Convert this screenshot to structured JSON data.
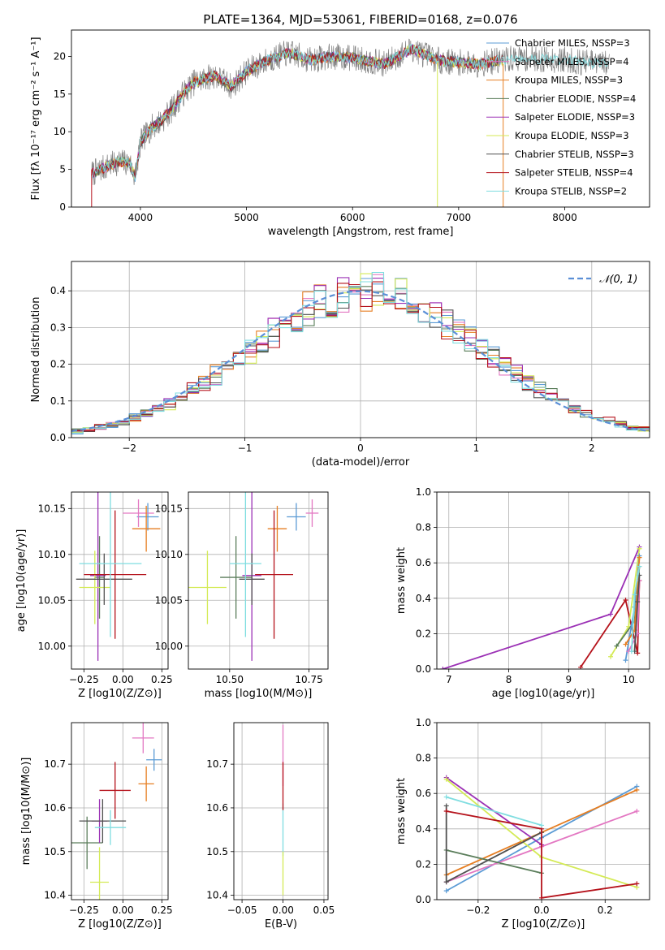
{
  "title": "PLATE=1364, MJD=53061, FIBERID=0168, z=0.076",
  "colors": {
    "chabrier_miles": "#5b9bd5",
    "salpeter_miles": "#e377c2",
    "kroupa_miles": "#e67e22",
    "chabrier_elodie": "#5a7d5a",
    "salpeter_elodie": "#9b30b5",
    "kroupa_elodie": "#d4ea55",
    "chabrier_stelib": "#505050",
    "salpeter_stelib": "#b5121b",
    "kroupa_stelib": "#7fdde0",
    "data_line": "#808080",
    "gaussian": "#5b8fd6"
  },
  "chart_data": [
    {
      "id": "spectrum",
      "type": "line",
      "title": "PLATE=1364, MJD=53061, FIBERID=0168, z=0.076",
      "xlabel": "wavelength [Angstrom, rest frame]",
      "ylabel": "Flux [fλ 10⁻¹⁷ erg cm⁻² s⁻¹ A⁻¹]",
      "xlim": [
        3350,
        8800
      ],
      "ylim": [
        0,
        23.5
      ],
      "xticks": [
        4000,
        5000,
        6000,
        7000,
        8000
      ],
      "yticks": [
        0,
        5,
        10,
        15,
        20
      ],
      "legend_position": "right",
      "legend": [
        "Chabrier MILES, NSSP=3",
        "Salpeter MILES, NSSP=4",
        "Kroupa MILES, NSSP=3",
        "Chabrier ELODIE, NSSP=4",
        "Salpeter ELODIE, NSSP=3",
        "Kroupa ELODIE, NSSP=3",
        "Chabrier STELIB, NSSP=3",
        "Salpeter STELIB, NSSP=4",
        "Kroupa STELIB, NSSP=2"
      ],
      "continuum_knots": [
        [
          3550,
          4.5
        ],
        [
          3700,
          5.5
        ],
        [
          3800,
          6.0
        ],
        [
          3900,
          5.8
        ],
        [
          3950,
          4.0
        ],
        [
          4000,
          8.5
        ],
        [
          4100,
          10.5
        ],
        [
          4200,
          11.5
        ],
        [
          4300,
          13.0
        ],
        [
          4400,
          15.0
        ],
        [
          4500,
          16.5
        ],
        [
          4700,
          17.5
        ],
        [
          4861,
          16.0
        ],
        [
          5000,
          18.0
        ],
        [
          5200,
          19.5
        ],
        [
          5400,
          20.5
        ],
        [
          5600,
          19.5
        ],
        [
          5800,
          20.0
        ],
        [
          6000,
          19.8
        ],
        [
          6300,
          19.0
        ],
        [
          6563,
          21.0
        ],
        [
          6800,
          19.5
        ],
        [
          7000,
          19.2
        ],
        [
          7200,
          19.0
        ],
        [
          7400,
          19.5
        ],
        [
          7600,
          19.8
        ],
        [
          7800,
          19.6
        ],
        [
          8000,
          19.5
        ],
        [
          8200,
          19.2
        ],
        [
          8400,
          19.0
        ]
      ]
    },
    {
      "id": "residuals",
      "type": "histogram",
      "xlabel": "(data-model)/error",
      "ylabel": "Normed distribution",
      "xlim": [
        -2.5,
        2.5
      ],
      "ylim": [
        0,
        0.48
      ],
      "xticks": [
        -2,
        -1,
        0,
        1,
        2
      ],
      "yticks": [
        0.0,
        0.1,
        0.2,
        0.3,
        0.4
      ],
      "bin_width": 0.1,
      "grid": true,
      "legend": [
        "𝒩(0, 1)"
      ],
      "legend_position": "top-right",
      "gaussian": {
        "mean": 0,
        "sigma": 1
      }
    },
    {
      "id": "age_vs_Z",
      "type": "scatter",
      "xlabel": "Z [log10(Z/Z⊙)]",
      "ylabel": "age [log10(age/yr)]",
      "xlim": [
        -0.33,
        0.29
      ],
      "ylim": [
        9.975,
        10.168
      ],
      "xticks": [
        -0.25,
        0.0,
        0.25
      ],
      "yticks": [
        10.0,
        10.05,
        10.1,
        10.15
      ],
      "grid": true,
      "points": [
        {
          "m": "chabrier_miles",
          "x": 0.16,
          "xe": 0.07,
          "y": 10.141,
          "ye": 0.015
        },
        {
          "m": "salpeter_miles",
          "x": 0.1,
          "xe": 0.1,
          "y": 10.145,
          "ye": 0.015
        },
        {
          "m": "kroupa_miles",
          "x": 0.15,
          "xe": 0.09,
          "y": 10.128,
          "ye": 0.025
        },
        {
          "m": "chabrier_elodie",
          "x": -0.15,
          "xe": 0.03,
          "y": 10.075,
          "ye": 0.045
        },
        {
          "m": "salpeter_elodie",
          "x": -0.16,
          "xe": 0.05,
          "y": 10.077,
          "ye": 0.093
        },
        {
          "m": "kroupa_elodie",
          "x": -0.18,
          "xe": 0.1,
          "y": 10.064,
          "ye": 0.04
        },
        {
          "m": "chabrier_stelib",
          "x": -0.12,
          "xe": 0.18,
          "y": 10.073,
          "ye": 0.028
        },
        {
          "m": "salpeter_stelib",
          "x": -0.05,
          "xe": 0.2,
          "y": 10.078,
          "ye": 0.07
        },
        {
          "m": "kroupa_stelib",
          "x": -0.08,
          "xe": 0.2,
          "y": 10.09,
          "ye": 0.08
        }
      ]
    },
    {
      "id": "age_vs_mass",
      "type": "scatter",
      "xlabel": "mass [log10(M/M⊙)]",
      "xlim": [
        10.37,
        10.81
      ],
      "ylim": [
        9.975,
        10.168
      ],
      "xticks": [
        10.5,
        10.75
      ],
      "yticks": [
        10.0,
        10.05,
        10.1,
        10.15
      ],
      "grid": true,
      "points": [
        {
          "m": "chabrier_miles",
          "x": 10.71,
          "xe": 0.03,
          "y": 10.141,
          "ye": 0.015
        },
        {
          "m": "salpeter_miles",
          "x": 10.76,
          "xe": 0.02,
          "y": 10.145,
          "ye": 0.015
        },
        {
          "m": "kroupa_miles",
          "x": 10.65,
          "xe": 0.03,
          "y": 10.128,
          "ye": 0.025
        },
        {
          "m": "chabrier_elodie",
          "x": 10.52,
          "xe": 0.05,
          "y": 10.075,
          "ye": 0.045
        },
        {
          "m": "salpeter_elodie",
          "x": 10.57,
          "xe": 0.03,
          "y": 10.077,
          "ye": 0.093
        },
        {
          "m": "kroupa_elodie",
          "x": 10.43,
          "xe": 0.06,
          "y": 10.064,
          "ye": 0.04
        },
        {
          "m": "chabrier_stelib",
          "x": 10.57,
          "xe": 0.04,
          "y": 10.073,
          "ye": 0.028
        },
        {
          "m": "salpeter_stelib",
          "x": 10.64,
          "xe": 0.06,
          "y": 10.078,
          "ye": 0.07
        },
        {
          "m": "kroupa_stelib",
          "x": 10.55,
          "xe": 0.05,
          "y": 10.09,
          "ye": 0.08
        }
      ]
    },
    {
      "id": "weight_vs_age",
      "type": "line",
      "xlabel": "age [log10(age/yr)]",
      "ylabel": "mass weight",
      "xlim": [
        6.8,
        10.35
      ],
      "ylim": [
        0,
        1.0
      ],
      "xticks": [
        7,
        8,
        9,
        10
      ],
      "yticks": [
        0.0,
        0.2,
        0.4,
        0.6,
        0.8,
        1.0
      ],
      "grid": true,
      "series": [
        {
          "m": "salpeter_elodie",
          "x": [
            6.9,
            9.7,
            10.18
          ],
          "y": [
            0.0,
            0.31,
            0.69
          ]
        },
        {
          "m": "salpeter_stelib",
          "x": [
            9.2,
            9.95,
            10.15,
            10.18
          ],
          "y": [
            0.01,
            0.39,
            0.09,
            0.5
          ]
        },
        {
          "m": "kroupa_elodie",
          "x": [
            9.7,
            10.0,
            10.18
          ],
          "y": [
            0.07,
            0.24,
            0.68
          ]
        },
        {
          "m": "chabrier_elodie",
          "x": [
            9.8,
            10.1,
            10.18
          ],
          "y": [
            0.13,
            0.27,
            0.58
          ]
        },
        {
          "m": "chabrier_miles",
          "x": [
            9.95,
            10.1,
            10.18
          ],
          "y": [
            0.05,
            0.35,
            0.64
          ]
        },
        {
          "m": "kroupa_miles",
          "x": [
            9.95,
            10.1,
            10.18
          ],
          "y": [
            0.14,
            0.22,
            0.63
          ]
        },
        {
          "m": "salpeter_miles",
          "x": [
            10.0,
            10.15,
            10.18
          ],
          "y": [
            0.1,
            0.2,
            0.5
          ]
        },
        {
          "m": "chabrier_stelib",
          "x": [
            10.1,
            10.15,
            10.18
          ],
          "y": [
            0.1,
            0.38,
            0.53
          ]
        },
        {
          "m": "kroupa_stelib",
          "x": [
            10.05,
            10.1,
            10.18
          ],
          "y": [
            0.1,
            0.42,
            0.58
          ]
        }
      ]
    },
    {
      "id": "mass_vs_Z",
      "type": "scatter",
      "xlabel": "Z [log10(Z/Z⊙)]",
      "ylabel": "mass [log10(M/M⊙)]",
      "xlim": [
        -0.33,
        0.29
      ],
      "ylim": [
        10.39,
        10.795
      ],
      "xticks": [
        -0.25,
        0.0,
        0.25
      ],
      "yticks": [
        10.4,
        10.5,
        10.6,
        10.7
      ],
      "grid": true,
      "points": [
        {
          "m": "chabrier_miles",
          "x": 0.2,
          "xe": 0.05,
          "y": 10.71,
          "ye": 0.025
        },
        {
          "m": "salpeter_miles",
          "x": 0.13,
          "xe": 0.07,
          "y": 10.76,
          "ye": 0.035
        },
        {
          "m": "kroupa_miles",
          "x": 0.15,
          "xe": 0.05,
          "y": 10.655,
          "ye": 0.04
        },
        {
          "m": "chabrier_elodie",
          "x": -0.23,
          "xe": 0.1,
          "y": 10.52,
          "ye": 0.06
        },
        {
          "m": "salpeter_elodie",
          "x": -0.15,
          "xe": 0.05,
          "y": 10.57,
          "ye": 0.05
        },
        {
          "m": "kroupa_elodie",
          "x": -0.15,
          "xe": 0.06,
          "y": 10.43,
          "ye": 0.08
        },
        {
          "m": "chabrier_stelib",
          "x": -0.13,
          "xe": 0.15,
          "y": 10.57,
          "ye": 0.05
        },
        {
          "m": "salpeter_stelib",
          "x": -0.05,
          "xe": 0.1,
          "y": 10.64,
          "ye": 0.065
        },
        {
          "m": "kroupa_stelib",
          "x": -0.08,
          "xe": 0.1,
          "y": 10.555,
          "ye": 0.04
        }
      ]
    },
    {
      "id": "mass_vs_ebv",
      "type": "scatter",
      "xlabel": "E(B-V)",
      "xlim": [
        -0.06,
        0.055
      ],
      "ylim": [
        10.39,
        10.795
      ],
      "xticks": [
        -0.05,
        0.0,
        0.05
      ],
      "yticks": [
        10.4,
        10.5,
        10.6,
        10.7
      ],
      "grid": true,
      "points": [
        {
          "m": "salpeter_miles",
          "x": 0.0,
          "xe": 0.0,
          "y": 10.72,
          "ye": 0.07
        },
        {
          "m": "kroupa_stelib",
          "x": 0.0,
          "xe": 0.0,
          "y": 10.55,
          "ye": 0.06
        },
        {
          "m": "kroupa_elodie",
          "x": 0.0,
          "xe": 0.0,
          "y": 10.45,
          "ye": 0.05
        },
        {
          "m": "salpeter_stelib",
          "x": 0.0,
          "xe": 0.0,
          "y": 10.65,
          "ye": 0.055
        }
      ]
    },
    {
      "id": "weight_vs_Z",
      "type": "line",
      "xlabel": "Z [log10(Z/Z⊙)]",
      "ylabel": "mass weight",
      "xlim": [
        -0.33,
        0.34
      ],
      "ylim": [
        0,
        1.0
      ],
      "xticks": [
        -0.2,
        0.0,
        0.2
      ],
      "yticks": [
        0.0,
        0.2,
        0.4,
        0.6,
        0.8,
        1.0
      ],
      "grid": true,
      "series": [
        {
          "m": "chabrier_miles",
          "x": [
            -0.3,
            0.0,
            0.3
          ],
          "y": [
            0.05,
            0.35,
            0.64
          ]
        },
        {
          "m": "salpeter_miles",
          "x": [
            -0.3,
            0.0,
            0.3
          ],
          "y": [
            0.1,
            0.3,
            0.5
          ]
        },
        {
          "m": "kroupa_miles",
          "x": [
            -0.3,
            0.0,
            0.3
          ],
          "y": [
            0.14,
            0.38,
            0.62
          ]
        },
        {
          "m": "chabrier_elodie",
          "x": [
            -0.3,
            0.0
          ],
          "y": [
            0.28,
            0.15
          ]
        },
        {
          "m": "salpeter_elodie",
          "x": [
            -0.3,
            0.0
          ],
          "y": [
            0.69,
            0.31
          ]
        },
        {
          "m": "kroupa_elodie",
          "x": [
            -0.3,
            0.0,
            0.3
          ],
          "y": [
            0.68,
            0.24,
            0.07
          ]
        },
        {
          "m": "chabrier_stelib",
          "x": [
            -0.3,
            -0.3,
            0.0
          ],
          "y": [
            0.53,
            0.1,
            0.38
          ]
        },
        {
          "m": "salpeter_stelib",
          "x": [
            -0.3,
            0.0,
            0.0,
            0.3
          ],
          "y": [
            0.5,
            0.4,
            0.01,
            0.09
          ]
        },
        {
          "m": "kroupa_stelib",
          "x": [
            -0.3,
            0.0
          ],
          "y": [
            0.58,
            0.42
          ]
        }
      ]
    }
  ]
}
